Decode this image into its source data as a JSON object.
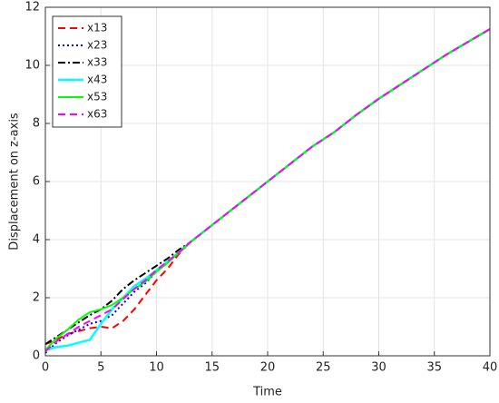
{
  "chart_data": {
    "type": "line",
    "xlabel": "Time",
    "ylabel": "Displacement on z-axis",
    "x": [
      0,
      1,
      2,
      3,
      4,
      5,
      6,
      7,
      8,
      9,
      10,
      11,
      12,
      13,
      14,
      15,
      16,
      17,
      18,
      19,
      20,
      22,
      24,
      26,
      28,
      30,
      32,
      34,
      36,
      38,
      40
    ],
    "series": [
      {
        "name": "x13",
        "color": "#ff0000",
        "linestyle": "--",
        "values": [
          0.4,
          0.55,
          0.75,
          0.85,
          0.95,
          1.0,
          0.95,
          1.2,
          1.6,
          2.1,
          2.6,
          3.0,
          3.5,
          3.9,
          4.2,
          4.5,
          4.8,
          5.1,
          5.4,
          5.7,
          6.0,
          6.6,
          7.2,
          7.7,
          8.3,
          8.85,
          9.35,
          9.85,
          10.35,
          10.8,
          11.25
        ]
      },
      {
        "name": "x23",
        "color": "#0000ff",
        "linestyle": ":",
        "values": [
          0.1,
          0.45,
          0.7,
          0.9,
          1.1,
          1.2,
          1.4,
          1.8,
          2.2,
          2.5,
          2.9,
          3.2,
          3.55,
          3.9,
          4.2,
          4.5,
          4.8,
          5.1,
          5.4,
          5.7,
          6.0,
          6.6,
          7.2,
          7.7,
          8.3,
          8.85,
          9.35,
          9.85,
          10.35,
          10.8,
          11.25
        ]
      },
      {
        "name": "x33",
        "color": "#000000",
        "linestyle": "-.",
        "values": [
          0.4,
          0.65,
          0.9,
          1.15,
          1.4,
          1.6,
          1.9,
          2.3,
          2.6,
          2.85,
          3.1,
          3.35,
          3.65,
          3.9,
          4.2,
          4.5,
          4.8,
          5.1,
          5.4,
          5.7,
          6.0,
          6.6,
          7.2,
          7.7,
          8.3,
          8.85,
          9.35,
          9.85,
          10.35,
          10.8,
          11.25
        ]
      },
      {
        "name": "x43",
        "color": "#00ffff",
        "linestyle": "-",
        "width": 2.5,
        "values": [
          0.2,
          0.3,
          0.35,
          0.45,
          0.55,
          1.1,
          1.6,
          2.0,
          2.4,
          2.65,
          2.95,
          3.25,
          3.55,
          3.9,
          4.2,
          4.5,
          4.8,
          5.1,
          5.4,
          5.7,
          6.0,
          6.6,
          7.2,
          7.7,
          8.3,
          8.85,
          9.35,
          9.85,
          10.35,
          10.8,
          11.25
        ]
      },
      {
        "name": "x53",
        "color": "#00ff00",
        "linestyle": "-",
        "values": [
          0.2,
          0.6,
          0.9,
          1.25,
          1.5,
          1.6,
          1.75,
          2.0,
          2.3,
          2.55,
          2.9,
          3.2,
          3.55,
          3.9,
          4.2,
          4.5,
          4.8,
          5.1,
          5.4,
          5.7,
          6.0,
          6.6,
          7.2,
          7.7,
          8.3,
          8.85,
          9.35,
          9.85,
          10.35,
          10.8,
          11.25
        ]
      },
      {
        "name": "x63",
        "color": "#ff00ff",
        "linestyle": "--",
        "values": [
          0.15,
          0.5,
          0.75,
          1.0,
          1.2,
          1.4,
          1.6,
          1.95,
          2.3,
          2.6,
          2.95,
          3.25,
          3.55,
          3.9,
          4.2,
          4.5,
          4.8,
          5.1,
          5.4,
          5.7,
          6.0,
          6.6,
          7.2,
          7.7,
          8.3,
          8.85,
          9.35,
          9.85,
          10.35,
          10.8,
          11.25
        ]
      }
    ],
    "xlim": [
      0,
      40
    ],
    "xticks": [
      0,
      5,
      10,
      15,
      20,
      25,
      30,
      35,
      40
    ],
    "ylim": [
      0,
      12
    ],
    "yticks": [
      0,
      2,
      4,
      6,
      8,
      10,
      12
    ],
    "grid": true,
    "legend": "northwest"
  }
}
